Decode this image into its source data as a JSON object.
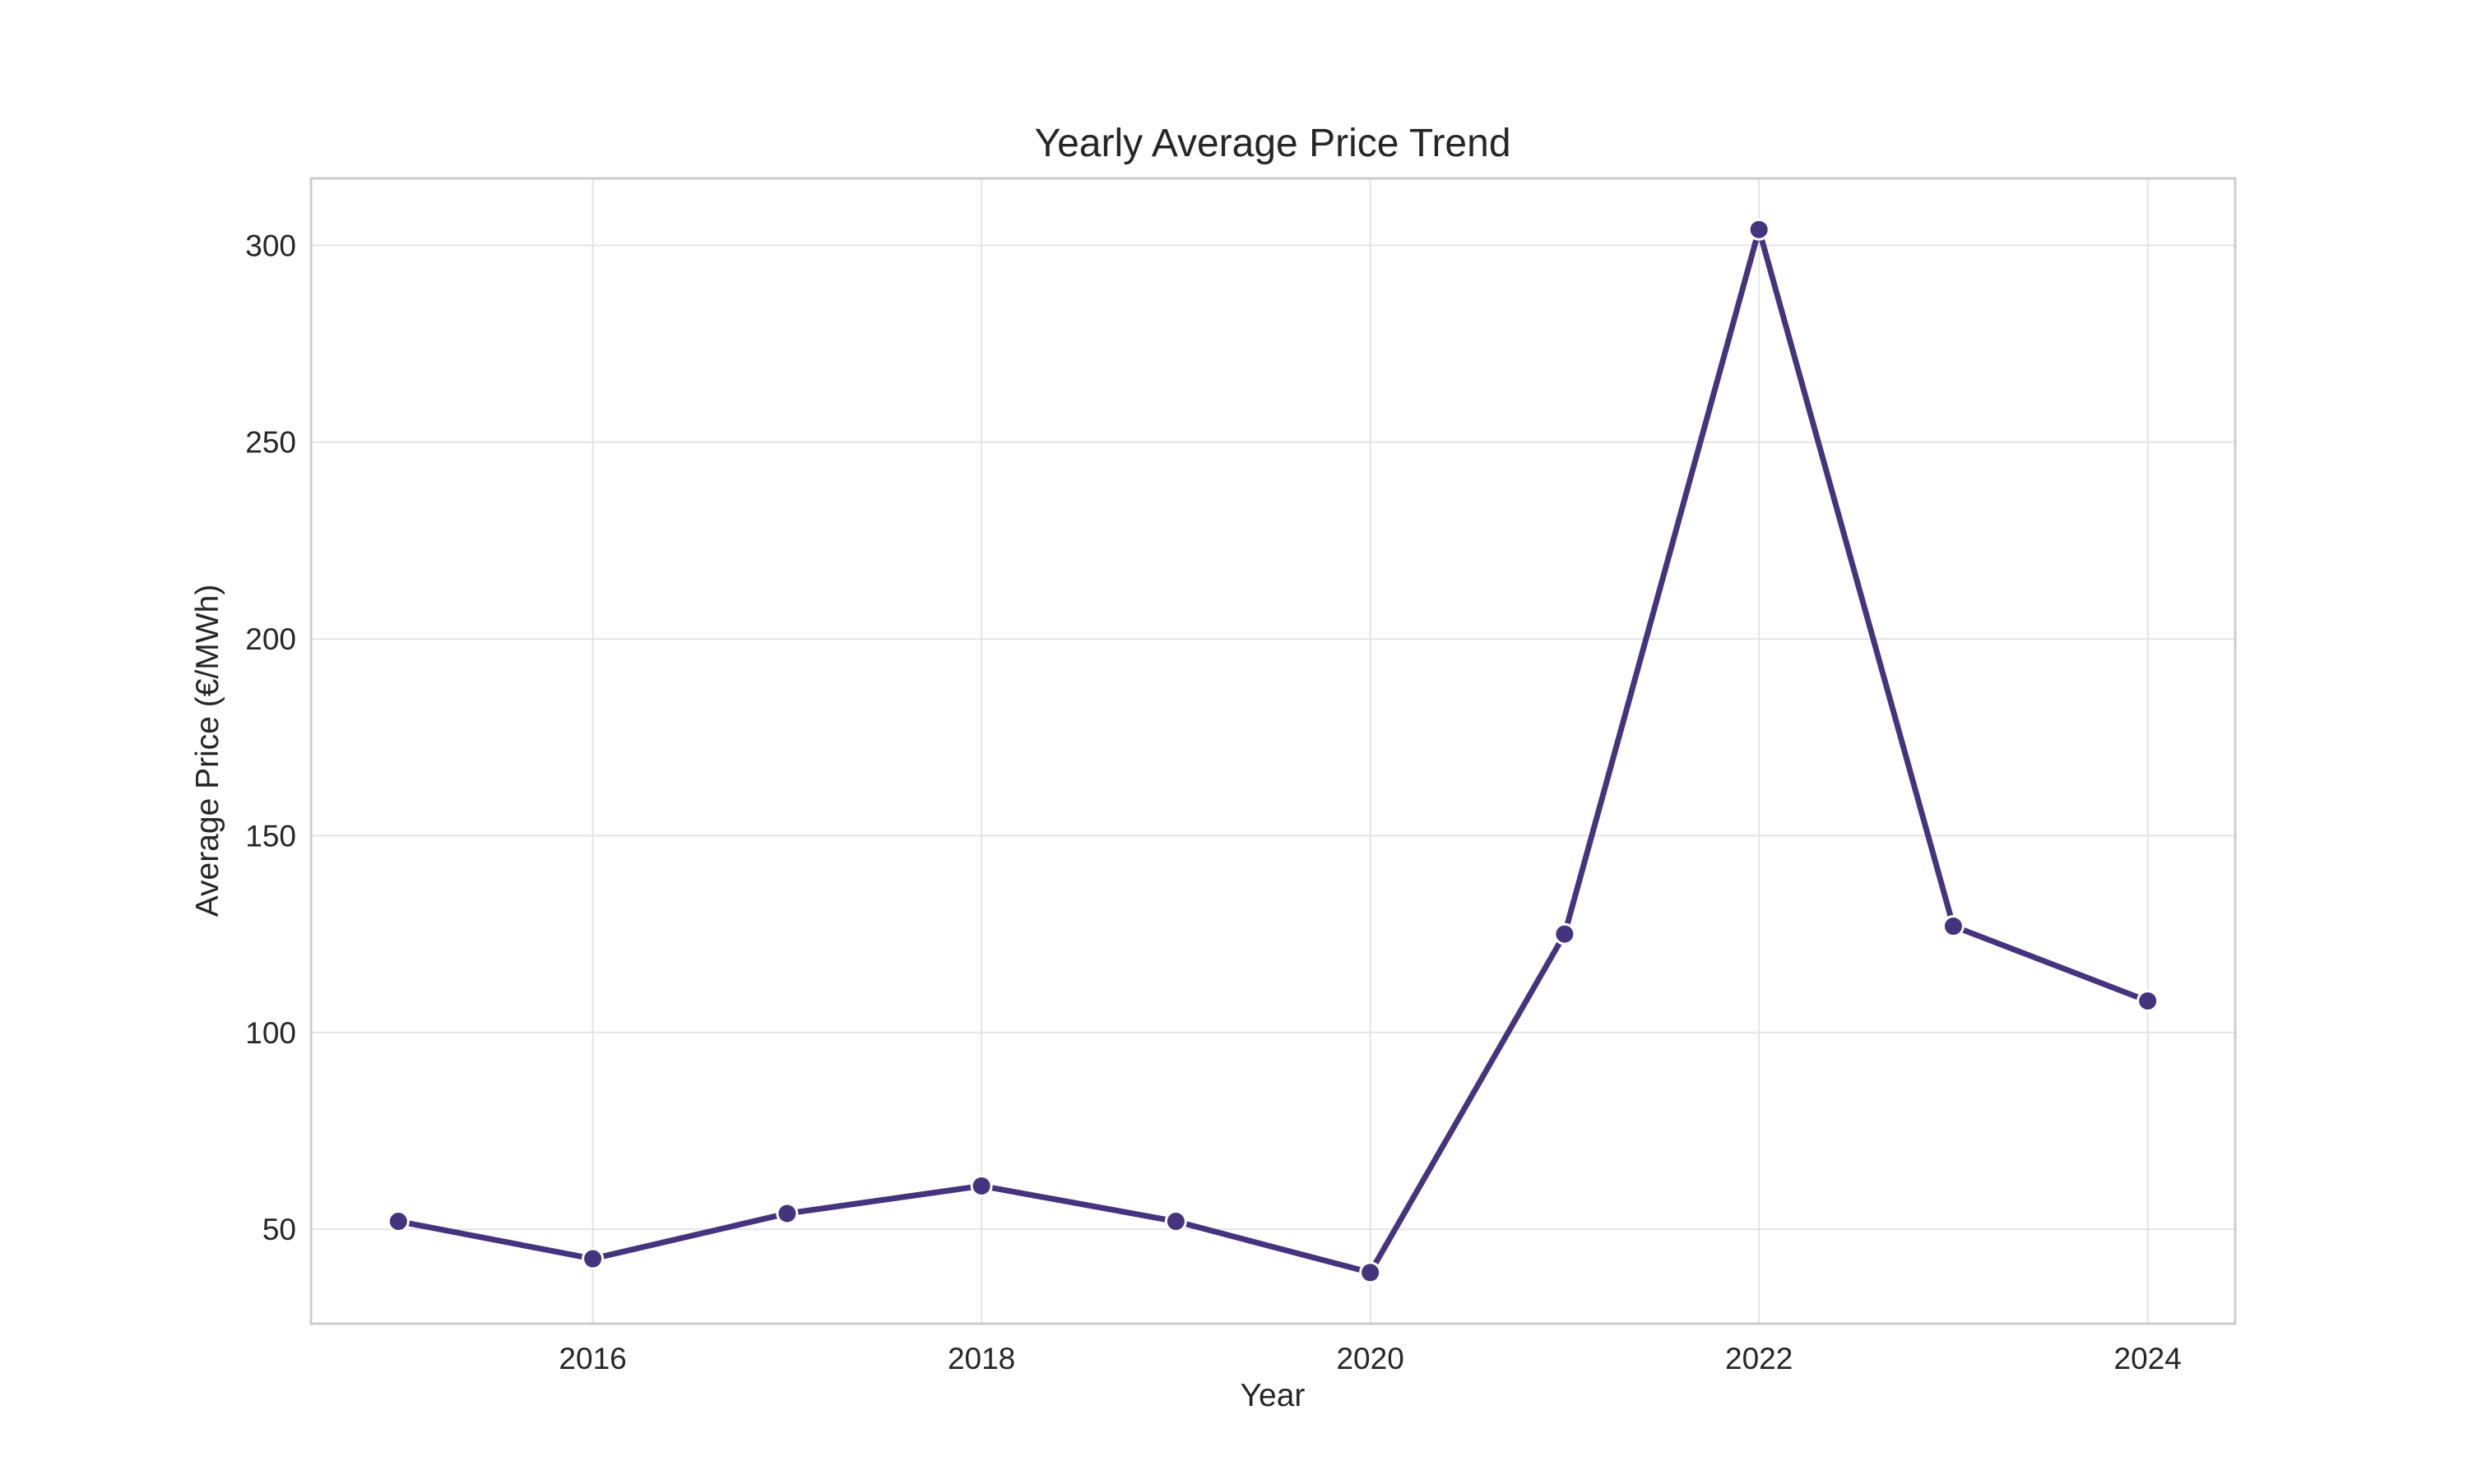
{
  "chart_data": {
    "type": "line",
    "title": "Yearly Average Price Trend",
    "xlabel": "Year",
    "ylabel": "Average Price (€/MWh)",
    "x": [
      2015,
      2016,
      2017,
      2018,
      2019,
      2020,
      2021,
      2022,
      2023,
      2024
    ],
    "series": [
      {
        "values": [
          52,
          42.5,
          54,
          61,
          52,
          39,
          125,
          304,
          127,
          108
        ],
        "color": "#46337e",
        "marker": "circle"
      }
    ],
    "xlim": [
      2014.55,
      2024.45
    ],
    "ylim": [
      26,
      317
    ],
    "xticks": [
      "2016",
      "2018",
      "2020",
      "2022",
      "2024"
    ],
    "yticks": [
      "50",
      "100",
      "150",
      "200",
      "250",
      "300"
    ],
    "grid": true,
    "legend": "none"
  }
}
